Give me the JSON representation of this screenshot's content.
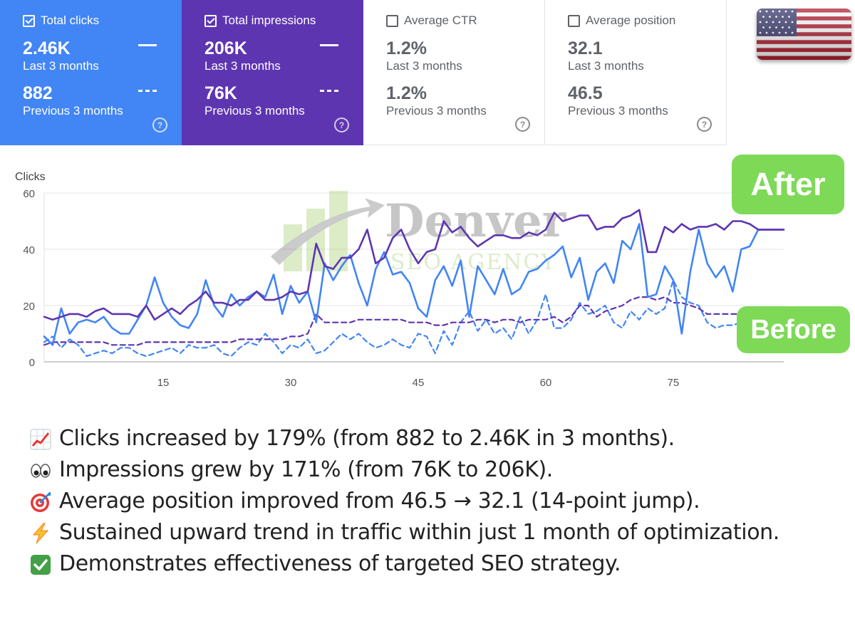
{
  "metrics": [
    {
      "label": "Total clicks",
      "value": "2.46K",
      "period": "Last 3 months",
      "prev_value": "882",
      "prev_period": "Previous 3 months",
      "checked": true,
      "color": "#4285f4"
    },
    {
      "label": "Total impressions",
      "value": "206K",
      "period": "Last 3 months",
      "prev_value": "76K",
      "prev_period": "Previous 3 months",
      "checked": true,
      "color": "#5e35b1"
    },
    {
      "label": "Average CTR",
      "value": "1.2%",
      "period": "Last 3 months",
      "prev_value": "1.2%",
      "prev_period": "Previous 3 months",
      "checked": false
    },
    {
      "label": "Average position",
      "value": "32.1",
      "period": "Last 3 months",
      "prev_value": "46.5",
      "prev_period": "Previous 3 months",
      "checked": false
    }
  ],
  "help_glyph": "?",
  "flag": {
    "icon": "us-flag-icon",
    "colors": {
      "red": "#b22234",
      "white": "#ffffff",
      "blue": "#3c3b6e"
    }
  },
  "badges": {
    "after": "After",
    "before": "Before",
    "color": "#7ed957"
  },
  "watermark": {
    "line1": "Denver",
    "line2": "SEO AGENCY"
  },
  "chart_data": {
    "type": "line",
    "ylabel": "Clicks",
    "ylim": [
      0,
      60
    ],
    "yticks": [
      0,
      20,
      40,
      60
    ],
    "xlim": [
      1,
      88
    ],
    "xticks": [
      15,
      30,
      45,
      60,
      75
    ],
    "grid": true,
    "series": [
      {
        "name": "Total clicks (Last 3 months)",
        "color": "#4285f4",
        "style": "solid",
        "values": [
          9,
          6,
          19,
          10,
          14,
          15,
          14,
          16,
          12,
          10,
          10,
          15,
          20,
          30,
          21,
          16,
          13,
          12,
          17,
          29,
          20,
          16,
          24,
          20,
          23,
          25,
          23,
          31,
          17,
          27,
          21,
          25,
          14,
          35,
          29,
          34,
          38,
          28,
          20,
          33,
          39,
          31,
          32,
          28,
          19,
          16,
          29,
          34,
          27,
          36,
          16,
          34,
          29,
          24,
          33,
          24,
          26,
          32,
          33,
          36,
          38,
          41,
          30,
          37,
          22,
          32,
          35,
          28,
          43,
          40,
          49,
          23,
          24,
          34,
          29,
          10,
          32,
          47,
          35,
          30,
          34,
          25,
          40,
          41,
          47,
          47,
          47,
          47
        ]
      },
      {
        "name": "Total impressions (Last 3 months)",
        "color": "#5e35b1",
        "style": "solid",
        "values": [
          16,
          15,
          16,
          17,
          17,
          16,
          18,
          19,
          17,
          17,
          17,
          16,
          20,
          15,
          17,
          19,
          17,
          20,
          22,
          25,
          21,
          21,
          20,
          22,
          22,
          25,
          22,
          22,
          23,
          25,
          24,
          25,
          42,
          34,
          33,
          37,
          37,
          40,
          47,
          35,
          37,
          44,
          47,
          40,
          35,
          39,
          40,
          50,
          46,
          48,
          44,
          41,
          43,
          45,
          45,
          44,
          44,
          46,
          45,
          47,
          53,
          50,
          51,
          52,
          52,
          47,
          48,
          48,
          51,
          52,
          54,
          39,
          39,
          48,
          46,
          49,
          47,
          48,
          48,
          49,
          47,
          50,
          50,
          49,
          47,
          47,
          47,
          47
        ]
      },
      {
        "name": "Total clicks (Previous 3 months)",
        "color": "#4285f4",
        "style": "dashed",
        "values": [
          7,
          9,
          5,
          8,
          6,
          2,
          3,
          4,
          3,
          5,
          5,
          3,
          2,
          3,
          4,
          5,
          3,
          6,
          5,
          5,
          6,
          3,
          2,
          5,
          7,
          6,
          10,
          7,
          3,
          6,
          5,
          8,
          3,
          4,
          7,
          10,
          8,
          10,
          7,
          5,
          6,
          8,
          6,
          5,
          10,
          9,
          3,
          11,
          6,
          14,
          18,
          11,
          15,
          10,
          12,
          8,
          16,
          10,
          15,
          24,
          12,
          12,
          15,
          21,
          17,
          18,
          20,
          14,
          12,
          18,
          15,
          19,
          17,
          19,
          29,
          23,
          21,
          20,
          14,
          12,
          13,
          13,
          14,
          14,
          14,
          14,
          14,
          14
        ]
      },
      {
        "name": "Total impressions (Previous 3 months)",
        "color": "#5e35b1",
        "style": "dashed",
        "values": [
          6,
          7,
          7,
          7,
          7,
          7,
          7,
          7,
          6,
          6,
          6,
          6,
          7,
          7,
          7,
          7,
          7,
          7,
          7,
          7,
          7,
          7,
          7,
          8,
          8,
          8,
          8,
          8,
          8,
          9,
          9,
          10,
          17,
          14,
          14,
          14,
          14,
          15,
          15,
          15,
          15,
          15,
          15,
          14,
          14,
          14,
          13,
          13,
          14,
          14,
          14,
          15,
          15,
          14,
          15,
          15,
          14,
          15,
          15,
          15,
          16,
          14,
          16,
          20,
          20,
          16,
          18,
          19,
          20,
          22,
          23,
          23,
          22,
          23,
          21,
          21,
          20,
          19,
          17,
          17,
          17,
          17,
          17,
          17,
          17,
          17,
          17,
          17
        ]
      }
    ]
  },
  "highlights": [
    {
      "icon": "chart-increasing-icon",
      "text": "Clicks increased by 179% (from 882 to 2.46K in 3 months)."
    },
    {
      "icon": "eyes-icon",
      "text": "Impressions grew by 171% (from 76K to 206K)."
    },
    {
      "icon": "direct-hit-target-icon",
      "text": "Average position improved from 46.5 → 32.1 (14-point jump)."
    },
    {
      "icon": "high-voltage-icon",
      "text": "Sustained upward trend in traffic within just 1 month of optimization."
    },
    {
      "icon": "check-mark-button-icon",
      "text": "Demonstrates effectiveness of targeted SEO strategy."
    }
  ]
}
